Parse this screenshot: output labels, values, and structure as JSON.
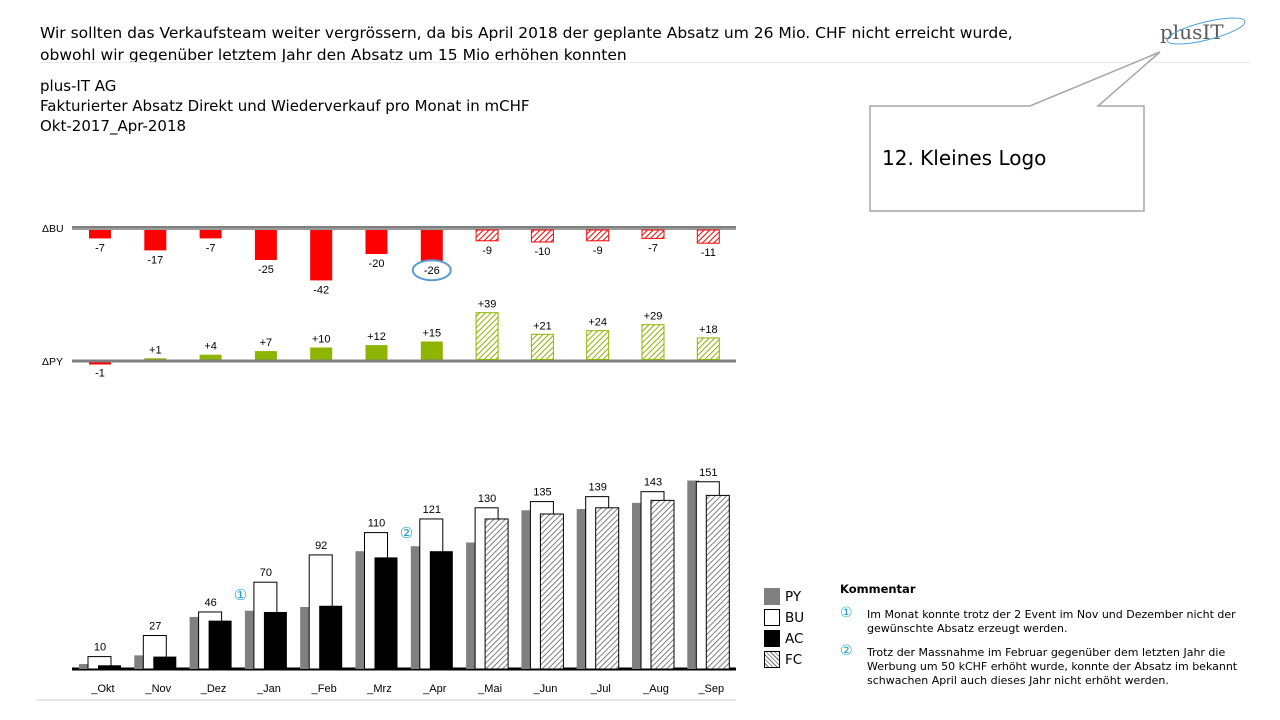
{
  "header": {
    "headline_line1": "Wir sollten das Verkaufsteam weiter vergrössern, da bis April 2018 der geplante Absatz um 26 Mio. CHF nicht erreicht wurde,",
    "headline_line2": "obwohl wir gegenüber letztem Jahr den Absatz um 15 Mio erhöhen konnten",
    "company": "plus-IT AG",
    "title_bold": "Fakturierter Absatz Direkt und Wiederverkauf pro Monat",
    "title_unit": " in mCHF",
    "period": "Okt-2017_Apr-2018"
  },
  "logo": {
    "text_plus": "plus",
    "text_it": "IT"
  },
  "callout": {
    "text": "12. Kleines Logo"
  },
  "chart_data": [
    {
      "type": "bar",
      "name": "ΔBU",
      "label": "ΔBU",
      "categories": [
        "_Okt",
        "_Nov",
        "_Dez",
        "_Jan",
        "_Feb",
        "_Mrz",
        "_Apr",
        "_Mai",
        "_Jun",
        "_Jul",
        "_Aug",
        "_Sep"
      ],
      "values": [
        -7,
        -17,
        -7,
        -25,
        -42,
        -20,
        -26,
        -9,
        -10,
        -9,
        -7,
        -11
      ],
      "labels": [
        "-7",
        "-17",
        "-7",
        "-25",
        "-42",
        "-20",
        "-26",
        "-9",
        "-10",
        "-9",
        "-7",
        "-11"
      ],
      "forecast_from_index": 7,
      "highlighted_index": 6,
      "colors": {
        "negative": "#ff0000",
        "axis": "#808080"
      }
    },
    {
      "type": "bar",
      "name": "ΔPY",
      "label": "ΔPY",
      "categories": [
        "_Okt",
        "_Nov",
        "_Dez",
        "_Jan",
        "_Feb",
        "_Mrz",
        "_Apr",
        "_Mai",
        "_Jun",
        "_Jul",
        "_Aug",
        "_Sep"
      ],
      "values": [
        -1,
        1,
        4,
        7,
        10,
        12,
        15,
        39,
        21,
        24,
        29,
        18
      ],
      "labels": [
        "-1",
        "+1",
        "+4",
        "+7",
        "+10",
        "+12",
        "+15",
        "+39",
        "+21",
        "+24",
        "+29",
        "+18"
      ],
      "forecast_from_index": 7,
      "colors": {
        "positive": "#8cb400",
        "negative": "#ff0000",
        "axis": "#808080"
      }
    },
    {
      "type": "bar",
      "name": "Absatz",
      "categories": [
        "_Okt",
        "_Nov",
        "_Dez",
        "_Jan",
        "_Feb",
        "_Mrz",
        "_Apr",
        "_Mai",
        "_Jun",
        "_Jul",
        "_Aug",
        "_Sep"
      ],
      "series": [
        {
          "name": "PY",
          "values": [
            4,
            11,
            42,
            47,
            50,
            95,
            99,
            102,
            128,
            129,
            134,
            152
          ]
        },
        {
          "name": "BU",
          "values": [
            10,
            27,
            46,
            70,
            92,
            110,
            121,
            130,
            135,
            139,
            143,
            151
          ]
        },
        {
          "name": "AC",
          "values": [
            3,
            10,
            39,
            46,
            51,
            90,
            95,
            null,
            null,
            null,
            null,
            null
          ]
        },
        {
          "name": "FC",
          "values": [
            null,
            null,
            null,
            null,
            null,
            null,
            null,
            121,
            125,
            130,
            136,
            140
          ]
        }
      ],
      "bu_labels": [
        "10",
        "27",
        "46",
        "70",
        "92",
        "110",
        "121",
        "130",
        "135",
        "139",
        "143",
        "151"
      ],
      "markers": [
        {
          "symbol": "①",
          "after_category": "_Dez"
        },
        {
          "symbol": "②",
          "after_category": "_Mrz"
        }
      ],
      "colors": {
        "PY": "#808080",
        "BU": "#ffffff",
        "AC": "#000000",
        "FC": "hatched",
        "marker": "#1aa2d6"
      }
    }
  ],
  "legend": {
    "py": "PY",
    "bu": "BU",
    "ac": "AC",
    "fc": "FC"
  },
  "comment": {
    "title": "Kommentar",
    "items": [
      {
        "marker": "①",
        "text": "Im Monat konnte trotz der 2 Event im Nov und Dezember nicht der gewünschte Absatz erzeugt werden."
      },
      {
        "marker": "②",
        "text": "Trotz der Massnahme im Februar gegenüber dem letzten Jahr  die Werbung um 50 kCHF erhöht wurde, konnte der Absatz im bekannt schwachen April auch dieses Jahr nicht erhöht werden."
      }
    ]
  }
}
